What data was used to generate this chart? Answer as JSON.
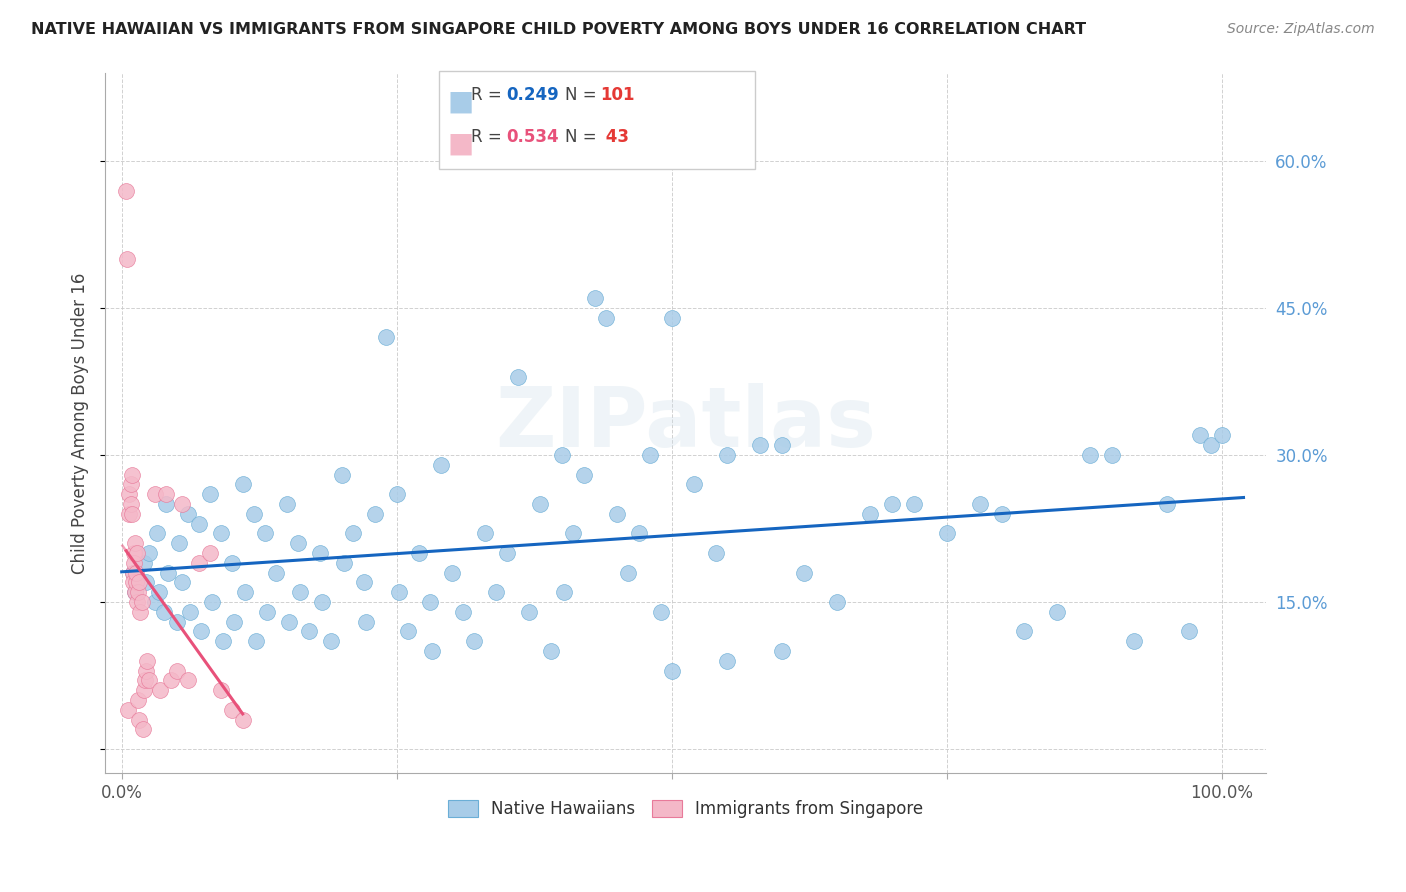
{
  "title": "NATIVE HAWAIIAN VS IMMIGRANTS FROM SINGAPORE CHILD POVERTY AMONG BOYS UNDER 16 CORRELATION CHART",
  "source": "Source: ZipAtlas.com",
  "ylabel": "Child Poverty Among Boys Under 16",
  "background_color": "#ffffff",
  "watermark": "ZIPatlas",
  "legend_label1": "Native Hawaiians",
  "legend_label2": "Immigrants from Singapore",
  "blue_color": "#a8cce8",
  "blue_edge_color": "#6baed6",
  "pink_color": "#f4b8c8",
  "pink_edge_color": "#e87a9a",
  "blue_line_color": "#1565c0",
  "pink_line_color": "#e8517a",
  "r_color_blue": "#1565c0",
  "r_color_pink": "#e8517a",
  "n_color": "#e53935",
  "r1_text": "R = 0.249",
  "n1_text": "N = 101",
  "r2_text": "R = 0.534",
  "n2_text": "N =  43",
  "blue_x": [
    0.01,
    0.012,
    0.02,
    0.022,
    0.025,
    0.03,
    0.032,
    0.034,
    0.038,
    0.04,
    0.042,
    0.05,
    0.052,
    0.055,
    0.06,
    0.062,
    0.07,
    0.072,
    0.08,
    0.082,
    0.09,
    0.092,
    0.1,
    0.102,
    0.11,
    0.112,
    0.12,
    0.122,
    0.13,
    0.132,
    0.14,
    0.15,
    0.152,
    0.16,
    0.162,
    0.17,
    0.18,
    0.182,
    0.19,
    0.2,
    0.202,
    0.21,
    0.22,
    0.222,
    0.23,
    0.24,
    0.25,
    0.252,
    0.26,
    0.27,
    0.28,
    0.282,
    0.29,
    0.3,
    0.31,
    0.32,
    0.33,
    0.34,
    0.35,
    0.36,
    0.37,
    0.38,
    0.39,
    0.4,
    0.402,
    0.41,
    0.42,
    0.43,
    0.44,
    0.45,
    0.46,
    0.47,
    0.48,
    0.49,
    0.5,
    0.52,
    0.54,
    0.55,
    0.58,
    0.6,
    0.62,
    0.65,
    0.68,
    0.7,
    0.72,
    0.75,
    0.78,
    0.8,
    0.82,
    0.85,
    0.88,
    0.9,
    0.92,
    0.95,
    0.97,
    0.98,
    0.99,
    1.0,
    0.5,
    0.55,
    0.6
  ],
  "blue_y": [
    0.18,
    0.16,
    0.19,
    0.17,
    0.2,
    0.15,
    0.22,
    0.16,
    0.14,
    0.25,
    0.18,
    0.13,
    0.21,
    0.17,
    0.24,
    0.14,
    0.23,
    0.12,
    0.26,
    0.15,
    0.22,
    0.11,
    0.19,
    0.13,
    0.27,
    0.16,
    0.24,
    0.11,
    0.22,
    0.14,
    0.18,
    0.25,
    0.13,
    0.21,
    0.16,
    0.12,
    0.2,
    0.15,
    0.11,
    0.28,
    0.19,
    0.22,
    0.17,
    0.13,
    0.24,
    0.42,
    0.26,
    0.16,
    0.12,
    0.2,
    0.15,
    0.1,
    0.29,
    0.18,
    0.14,
    0.11,
    0.22,
    0.16,
    0.2,
    0.38,
    0.14,
    0.25,
    0.1,
    0.3,
    0.16,
    0.22,
    0.28,
    0.46,
    0.44,
    0.24,
    0.18,
    0.22,
    0.3,
    0.14,
    0.44,
    0.27,
    0.2,
    0.3,
    0.31,
    0.31,
    0.18,
    0.15,
    0.24,
    0.25,
    0.25,
    0.22,
    0.25,
    0.24,
    0.12,
    0.14,
    0.3,
    0.3,
    0.11,
    0.25,
    0.12,
    0.32,
    0.31,
    0.32,
    0.08,
    0.09,
    0.1
  ],
  "pink_x": [
    0.004,
    0.005,
    0.006,
    0.007,
    0.007,
    0.008,
    0.008,
    0.009,
    0.009,
    0.01,
    0.01,
    0.011,
    0.011,
    0.012,
    0.012,
    0.013,
    0.013,
    0.014,
    0.014,
    0.015,
    0.015,
    0.016,
    0.016,
    0.017,
    0.018,
    0.019,
    0.02,
    0.021,
    0.022,
    0.023,
    0.025,
    0.03,
    0.035,
    0.04,
    0.045,
    0.05,
    0.055,
    0.06,
    0.07,
    0.08,
    0.09,
    0.1,
    0.11
  ],
  "pink_y": [
    0.57,
    0.5,
    0.04,
    0.26,
    0.24,
    0.27,
    0.25,
    0.28,
    0.24,
    0.18,
    0.17,
    0.2,
    0.19,
    0.21,
    0.16,
    0.17,
    0.18,
    0.2,
    0.15,
    0.16,
    0.05,
    0.17,
    0.03,
    0.14,
    0.15,
    0.02,
    0.06,
    0.07,
    0.08,
    0.09,
    0.07,
    0.26,
    0.06,
    0.26,
    0.07,
    0.08,
    0.25,
    0.07,
    0.19,
    0.2,
    0.06,
    0.04,
    0.03
  ]
}
